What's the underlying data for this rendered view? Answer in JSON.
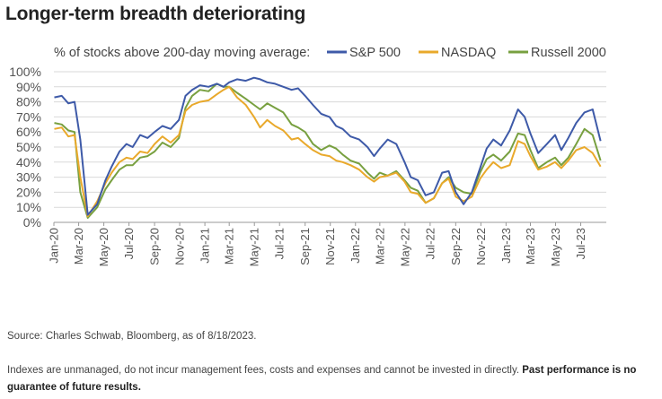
{
  "title": "Longer-term breadth deteriorating",
  "footer": {
    "source": "Source: Charles Schwab, Bloomberg, as of 8/18/2023.",
    "disclaimer": "Indexes are unmanaged, do not incur management fees, costs and expenses and cannot be invested in directly.",
    "disclaimer_bold": "Past performance is no guarantee of future results."
  },
  "chart_data": {
    "type": "line",
    "legend_title": "% of stocks above 200-day moving average:",
    "legend_position": "top",
    "ylim": [
      0,
      100
    ],
    "y_ticks": [
      "0%",
      "10%",
      "20%",
      "30%",
      "40%",
      "50%",
      "60%",
      "70%",
      "80%",
      "90%",
      "100%"
    ],
    "x_ticks": [
      "Jan-20",
      "Mar-20",
      "May-20",
      "Jul-20",
      "Sep-20",
      "Nov-20",
      "Jan-21",
      "Mar-21",
      "May-21",
      "Jul-21",
      "Sep-21",
      "Nov-21",
      "Jan-22",
      "Mar-22",
      "May-22",
      "Jul-22",
      "Sep-22",
      "Nov-22",
      "Jan-23",
      "Mar-23",
      "May-23",
      "Jul-23"
    ],
    "grid": true,
    "x": [
      "2020-01-02",
      "2020-01-20",
      "2020-02-05",
      "2020-02-20",
      "2020-03-05",
      "2020-03-23",
      "2020-04-15",
      "2020-05-05",
      "2020-05-20",
      "2020-06-08",
      "2020-06-25",
      "2020-07-10",
      "2020-07-28",
      "2020-08-15",
      "2020-09-01",
      "2020-09-20",
      "2020-10-10",
      "2020-10-30",
      "2020-11-15",
      "2020-12-01",
      "2020-12-20",
      "2021-01-10",
      "2021-01-30",
      "2021-02-15",
      "2021-03-01",
      "2021-03-20",
      "2021-04-10",
      "2021-04-30",
      "2021-05-15",
      "2021-06-01",
      "2021-06-20",
      "2021-07-10",
      "2021-07-30",
      "2021-08-15",
      "2021-09-01",
      "2021-09-20",
      "2021-10-10",
      "2021-10-30",
      "2021-11-15",
      "2021-12-01",
      "2021-12-20",
      "2022-01-10",
      "2022-01-30",
      "2022-02-15",
      "2022-03-01",
      "2022-03-20",
      "2022-04-10",
      "2022-04-30",
      "2022-05-15",
      "2022-06-01",
      "2022-06-20",
      "2022-07-10",
      "2022-07-30",
      "2022-08-15",
      "2022-09-01",
      "2022-09-20",
      "2022-10-10",
      "2022-10-30",
      "2022-11-15",
      "2022-12-01",
      "2022-12-20",
      "2023-01-10",
      "2023-01-30",
      "2023-02-15",
      "2023-03-01",
      "2023-03-20",
      "2023-04-10",
      "2023-04-30",
      "2023-05-15",
      "2023-06-01",
      "2023-06-20",
      "2023-07-10",
      "2023-07-30",
      "2023-08-18"
    ],
    "series": [
      {
        "name": "S&P 500",
        "color": "#3e5aa8",
        "values": [
          83,
          84,
          79,
          80,
          55,
          5,
          12,
          28,
          37,
          47,
          52,
          50,
          58,
          56,
          60,
          64,
          62,
          68,
          84,
          88,
          91,
          90,
          92,
          90,
          93,
          95,
          94,
          96,
          95,
          93,
          92,
          90,
          88,
          89,
          84,
          78,
          72,
          70,
          64,
          62,
          57,
          55,
          50,
          44,
          49,
          55,
          52,
          40,
          30,
          28,
          18,
          20,
          33,
          34,
          20,
          12,
          20,
          36,
          49,
          55,
          51,
          61,
          75,
          70,
          59,
          46,
          52,
          58,
          48,
          56,
          66,
          73,
          75,
          54
        ]
      },
      {
        "name": "NASDAQ",
        "color": "#e9a92b",
        "values": [
          62,
          63,
          57,
          58,
          30,
          4,
          14,
          26,
          33,
          40,
          43,
          42,
          47,
          46,
          52,
          57,
          53,
          58,
          74,
          78,
          80,
          81,
          85,
          88,
          90,
          83,
          78,
          70,
          63,
          68,
          64,
          61,
          55,
          56,
          52,
          48,
          45,
          44,
          41,
          40,
          38,
          35,
          30,
          27,
          30,
          31,
          33,
          27,
          20,
          19,
          13,
          16,
          26,
          29,
          17,
          14,
          17,
          29,
          35,
          40,
          36,
          38,
          54,
          52,
          44,
          35,
          37,
          40,
          36,
          41,
          48,
          50,
          46,
          37
        ]
      },
      {
        "name": "Russell 2000",
        "color": "#78a040",
        "values": [
          66,
          65,
          61,
          60,
          20,
          3,
          10,
          22,
          28,
          35,
          38,
          38,
          43,
          44,
          47,
          53,
          50,
          56,
          76,
          84,
          88,
          87,
          92,
          90,
          90,
          86,
          82,
          78,
          75,
          79,
          76,
          73,
          65,
          63,
          60,
          52,
          48,
          51,
          49,
          45,
          41,
          39,
          33,
          29,
          33,
          31,
          34,
          28,
          23,
          21,
          13,
          16,
          26,
          30,
          23,
          20,
          19,
          33,
          42,
          45,
          41,
          47,
          59,
          58,
          48,
          36,
          40,
          43,
          38,
          43,
          52,
          62,
          58,
          41
        ]
      }
    ]
  }
}
